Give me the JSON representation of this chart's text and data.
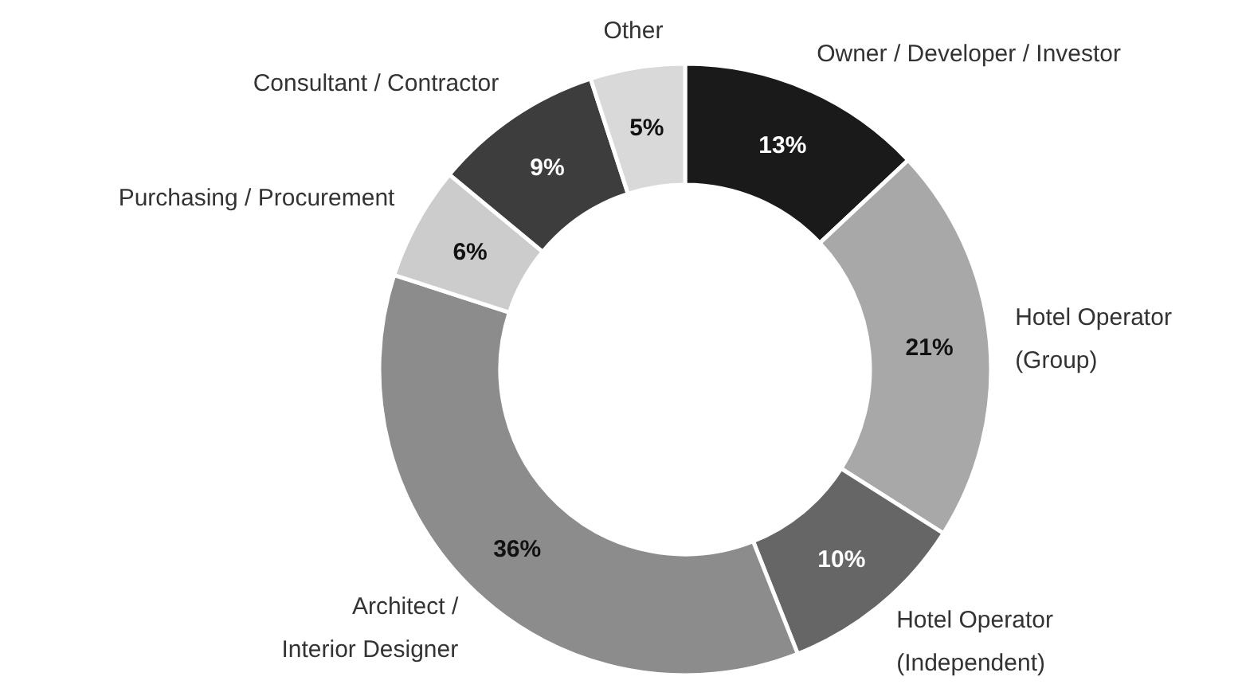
{
  "chart_data": {
    "type": "donut",
    "categories": [
      "Owner / Developer / Investor",
      "Hotel Operator\n(Group)",
      "Hotel Operator\n(Independent)",
      "Architect /\nInterior Designer",
      "Purchasing / Procurement",
      "Consultant / Contractor",
      "Other"
    ],
    "values": [
      13,
      21,
      10,
      36,
      6,
      9,
      5
    ],
    "value_labels": [
      "13%",
      "21%",
      "10%",
      "36%",
      "6%",
      "9%",
      "5%"
    ],
    "colors": [
      "#1a1a1a",
      "#a8a8a8",
      "#666666",
      "#8c8c8c",
      "#cccccc",
      "#3d3d3d",
      "#d9d9d9"
    ],
    "legend": false
  }
}
